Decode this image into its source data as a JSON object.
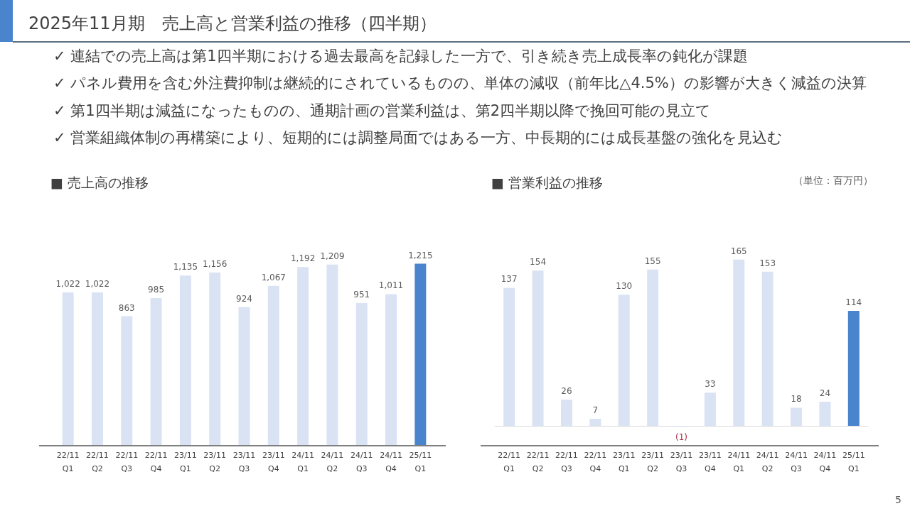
{
  "chart_data": [
    {
      "type": "other",
      "title": "2025年11月期　売上高と営業利益の推移（四半期）",
      "annotations": [
        "✓ 連結での売上高は第1四半期における過去最高を記録した一方で、引き続き売上成長率の鈍化が課題",
        "✓ パネル費用を含む外注費抑制は継続的にされているものの、単体の減収（前年比△4.5%）の影響が大きく減益の決算",
        "✓ 第1四半期は減益になったものの、通期計画の営業利益は、第2四半期以降で挽回可能の見立て",
        "✓ 営業組織体制の再構築により、短期的には調整局面ではある一方、中長期的には成長基盤の強化を見込む",
        "5"
      ]
    },
    {
      "type": "bar",
      "title": "■ 売上高の推移",
      "categories": [
        "22/11\nQ1",
        "22/11\nQ2",
        "22/11\nQ3",
        "22/11\nQ4",
        "23/11\nQ1",
        "23/11\nQ2",
        "23/11\nQ3",
        "23/11\nQ4",
        "24/11\nQ1",
        "24/11\nQ2",
        "24/11\nQ3",
        "24/11\nQ4",
        "25/11\nQ1"
      ],
      "values": [
        1022,
        1022,
        863,
        985,
        1135,
        1156,
        924,
        1067,
        1192,
        1209,
        951,
        1011,
        1215
      ],
      "colors": [
        "#dae3f3",
        "#dae3f3",
        "#dae3f3",
        "#dae3f3",
        "#dae3f3",
        "#dae3f3",
        "#dae3f3",
        "#dae3f3",
        "#dae3f3",
        "#dae3f3",
        "#dae3f3",
        "#dae3f3",
        "#4a84cd"
      ],
      "value_labels": [
        "1,022",
        "1,022",
        "863",
        "985",
        "1,135",
        "1,156",
        "924",
        "1,067",
        "1,192",
        "1,209",
        "951",
        "1,011",
        "1,215"
      ]
    },
    {
      "type": "bar",
      "title": "■ 営業利益の推移",
      "annotations": [
        "（単位：百万円）"
      ],
      "categories": [
        "22/11\nQ1",
        "22/11\nQ2",
        "22/11\nQ3",
        "22/11\nQ4",
        "23/11\nQ1",
        "23/11\nQ2",
        "23/11\nQ3",
        "23/11\nQ4",
        "24/11\nQ1",
        "24/11\nQ2",
        "24/11\nQ3",
        "24/11\nQ4",
        "25/11\nQ1"
      ],
      "values": [
        137,
        154,
        26,
        7,
        130,
        155,
        -1,
        33,
        165,
        153,
        18,
        24,
        114
      ],
      "colors": [
        "#dae3f3",
        "#dae3f3",
        "#dae3f3",
        "#dae3f3",
        "#dae3f3",
        "#dae3f3",
        "#dae3f3",
        "#dae3f3",
        "#dae3f3",
        "#dae3f3",
        "#dae3f3",
        "#dae3f3",
        "#4a84cd"
      ],
      "value_labels": [
        "137",
        "154",
        "26",
        "7",
        "130",
        "155",
        "(1)",
        "33",
        "165",
        "153",
        "18",
        "24",
        "114"
      ]
    }
  ]
}
